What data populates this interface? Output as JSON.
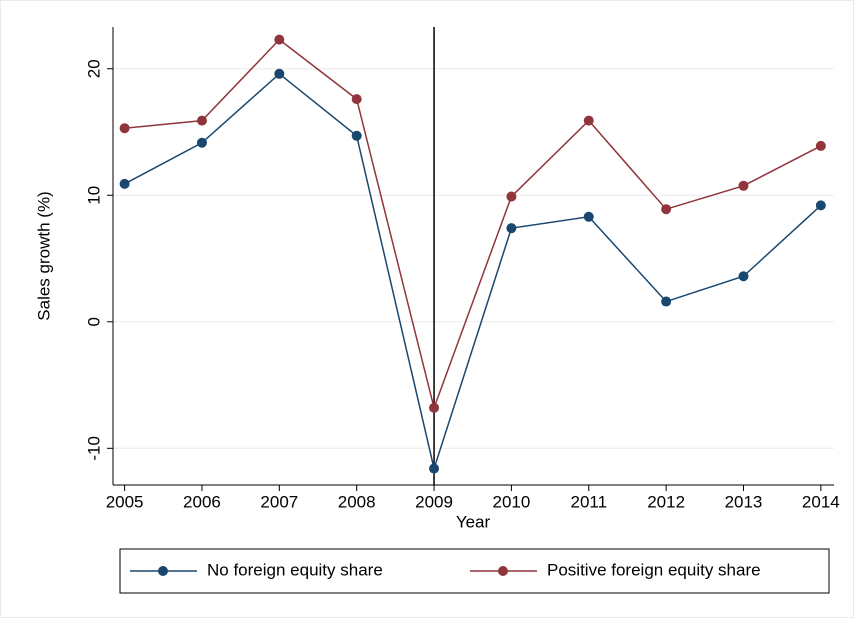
{
  "chart_data": {
    "type": "line",
    "x_label": "Year",
    "y_label": "Sales growth (%)",
    "x": [
      2005,
      2006,
      2007,
      2008,
      2009,
      2010,
      2011,
      2012,
      2013,
      2014
    ],
    "series": [
      {
        "name": "No foreign equity share",
        "color": "#1a476f",
        "values": [
          10.9,
          14.15,
          19.6,
          14.7,
          -11.6,
          7.4,
          8.3,
          1.6,
          3.6,
          9.2
        ]
      },
      {
        "name": "Positive foreign equity share",
        "color": "#90353b",
        "values": [
          15.3,
          15.9,
          22.3,
          17.6,
          -6.8,
          9.9,
          15.9,
          8.9,
          10.75,
          13.9
        ]
      }
    ],
    "xlim": [
      2004.85,
      2014.17
    ],
    "ylim": [
      -12.9,
      23.3
    ],
    "xticks": [
      2005,
      2006,
      2007,
      2008,
      2009,
      2010,
      2011,
      2012,
      2013,
      2014
    ],
    "yticks": [
      -10,
      0,
      10,
      20
    ],
    "xline": 2009,
    "grid": true,
    "legend_position": "bottom"
  }
}
